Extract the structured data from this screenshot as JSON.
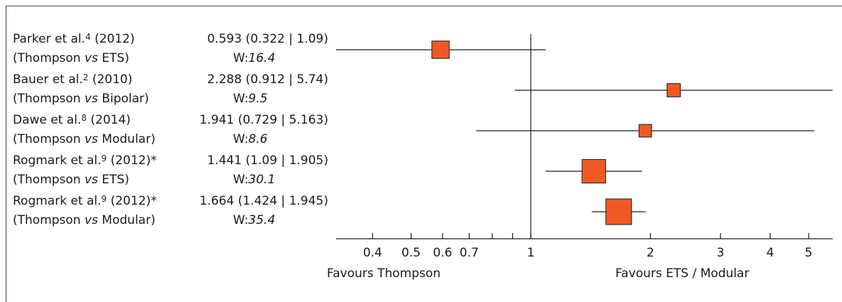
{
  "chart_data": {
    "type": "forest",
    "scale": "log",
    "xlim": [
      0.33,
      5.8
    ],
    "reference_line": 1,
    "ticks": [
      0.4,
      0.5,
      0.6,
      0.7,
      1,
      2,
      3,
      4,
      5
    ],
    "tick_labels": [
      "0.4",
      "0.5",
      "0.6",
      "0.7",
      "1",
      "2",
      "3",
      "4",
      "5"
    ],
    "minor_ticks": [
      0.8,
      0.9
    ],
    "left_label": "Favours Thompson",
    "right_label": "Favours ETS / Modular",
    "marker_color": "#ef5a24",
    "studies": [
      {
        "author": "Parker et al.",
        "ref": "4",
        "year": "(2012)",
        "star": "",
        "comparison_a": "(Thompson ",
        "vs": "vs",
        "comparison_b": " ETS)",
        "estimate": 0.593,
        "lower": 0.322,
        "upper": 1.09,
        "stat_text": "0.593 (0.322 | 1.09)",
        "weight": 16.4,
        "weight_text": "16.4"
      },
      {
        "author": "Bauer et al.",
        "ref": "2",
        "year": "(2010)",
        "star": "",
        "comparison_a": "(Thompson ",
        "vs": "vs",
        "comparison_b": " Bipolar)",
        "estimate": 2.288,
        "lower": 0.912,
        "upper": 5.74,
        "stat_text": "2.288 (0.912 | 5.74)",
        "weight": 9.5,
        "weight_text": "9.5"
      },
      {
        "author": "Dawe et al.",
        "ref": "8",
        "year": "(2014)",
        "star": "",
        "comparison_a": "(Thompson ",
        "vs": "vs",
        "comparison_b": " Modular)",
        "estimate": 1.941,
        "lower": 0.729,
        "upper": 5.163,
        "stat_text": "1.941 (0.729 | 5.163)",
        "weight": 8.6,
        "weight_text": "8.6"
      },
      {
        "author": "Rogmark et al.",
        "ref": "9",
        "year": "(2012)",
        "star": "*",
        "comparison_a": "(Thompson ",
        "vs": "vs",
        "comparison_b": " ETS)",
        "estimate": 1.441,
        "lower": 1.09,
        "upper": 1.905,
        "stat_text": "1.441 (1.09 | 1.905)",
        "weight": 30.1,
        "weight_text": "30.1"
      },
      {
        "author": "Rogmark et al.",
        "ref": "9",
        "year": "(2012)",
        "star": "*",
        "comparison_a": "(Thompson ",
        "vs": "vs",
        "comparison_b": " Modular)",
        "estimate": 1.664,
        "lower": 1.424,
        "upper": 1.945,
        "stat_text": "1.664 (1.424 | 1.945)",
        "weight": 35.4,
        "weight_text": "35.4"
      }
    ],
    "weight_prefix": "W:"
  }
}
